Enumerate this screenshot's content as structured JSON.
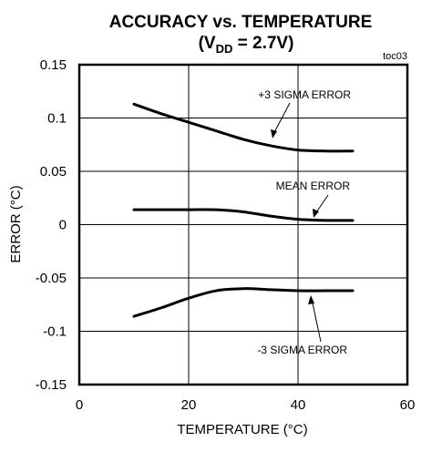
{
  "chart_data": {
    "type": "line",
    "title": "ACCURACY vs. TEMPERATURE",
    "subtitle": {
      "prefix": "(V",
      "subscript": "DD",
      "suffix": " = 2.7V)"
    },
    "figure_id": "toc03",
    "xlabel": "TEMPERATURE (°C)",
    "ylabel": "ERROR (°C)",
    "xlim": [
      0,
      60
    ],
    "ylim": [
      -0.15,
      0.15
    ],
    "x_ticks": [
      0,
      20,
      40,
      60
    ],
    "x_tick_labels": [
      "0",
      "20",
      "40",
      "60"
    ],
    "y_ticks": [
      0.15,
      0.1,
      0.05,
      0,
      -0.05,
      -0.1,
      -0.15
    ],
    "y_tick_labels": [
      "0.15",
      "0.1",
      "0.05",
      "0",
      "-0.05",
      "-0.1",
      "-0.15"
    ],
    "grid": true,
    "series": [
      {
        "name": "+3 SIGMA ERROR",
        "x": [
          10,
          15,
          20,
          25,
          30,
          35,
          40,
          45,
          50
        ],
        "values": [
          0.113,
          0.104,
          0.096,
          0.088,
          0.08,
          0.074,
          0.07,
          0.069,
          0.069
        ]
      },
      {
        "name": "MEAN ERROR",
        "x": [
          10,
          15,
          20,
          25,
          30,
          35,
          40,
          45,
          50
        ],
        "values": [
          0.014,
          0.014,
          0.014,
          0.014,
          0.012,
          0.008,
          0.005,
          0.004,
          0.004
        ]
      },
      {
        "name": "-3 SIGMA ERROR",
        "x": [
          10,
          15,
          20,
          25,
          30,
          35,
          40,
          45,
          50
        ],
        "values": [
          -0.086,
          -0.078,
          -0.069,
          -0.062,
          -0.06,
          -0.061,
          -0.062,
          -0.062,
          -0.062
        ]
      }
    ],
    "annotations": [
      {
        "text": "+3 SIGMA ERROR",
        "points_to": {
          "x": 35,
          "y": 0.078
        }
      },
      {
        "text": "MEAN ERROR",
        "points_to": {
          "x": 43,
          "y": 0.005
        }
      },
      {
        "text": "-3 SIGMA ERROR",
        "points_to": {
          "x": 42,
          "y": -0.067
        }
      }
    ]
  }
}
